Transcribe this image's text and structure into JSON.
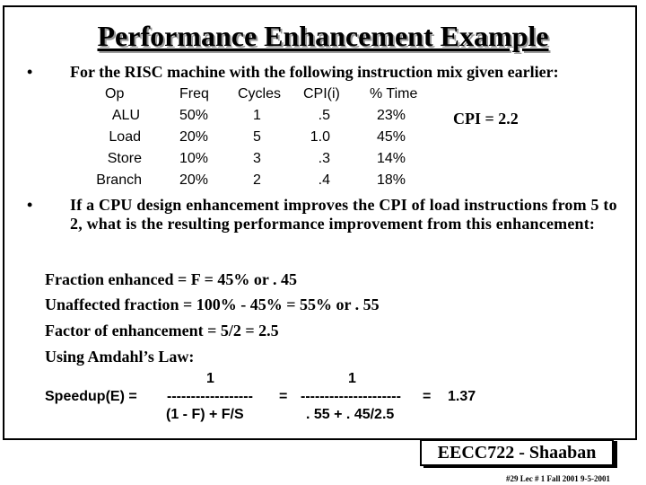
{
  "slide": {
    "title": "Performance Enhancement Example",
    "bullet1": "For the RISC machine with the following instruction mix given earlier:",
    "bullet2": "If a CPU design enhancement improves the CPI of load instructions from 5 to 2,  what is the resulting performance improvement from this enhancement:",
    "bullet_symbol": "•",
    "cpi_note": "CPI = 2.2",
    "table": {
      "headers": [
        "Op",
        "Freq",
        "Cycles",
        "CPI(i)",
        "% Time"
      ],
      "rows": [
        [
          "ALU",
          "50%",
          "1",
          ".5",
          "23%"
        ],
        [
          "Load",
          "20%",
          "5",
          "1.0",
          "45%"
        ],
        [
          "Store",
          "10%",
          "3",
          ".3",
          "14%"
        ],
        [
          "Branch",
          "20%",
          "2",
          ".4",
          "18%"
        ]
      ]
    },
    "lines": [
      "Fraction enhanced =  F =  45%   or  . 45",
      "Unaffected fraction = 100% - 45% =  55%    or  . 55",
      "Factor of enhancement =  5/2 =  2.5",
      "Using Amdahl’s Law:"
    ],
    "formula": {
      "num1": "1",
      "num2": "1",
      "label": "Speedup(E)  =",
      "bar1": "------------------",
      "eq2": "=",
      "bar2": "---------------------",
      "eq3": "=",
      "result": "1.37",
      "den1": "(1 - F)  +  F/S",
      "den2": ". 55  +  . 45/2.5"
    },
    "badge": "EECC722 - Shaaban",
    "footer": "#29   Lec # 1   Fall 2001  9-5-2001"
  }
}
